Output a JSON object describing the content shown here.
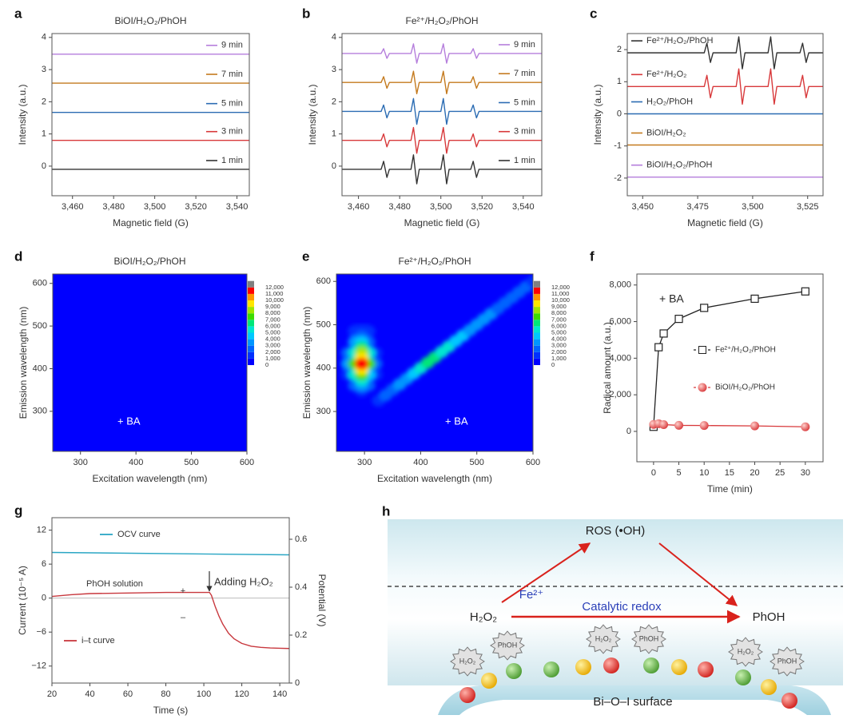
{
  "chart_data": [
    {
      "panel_label": "a",
      "type": "line",
      "title": "BiOI/H₂O₂/PhOH",
      "xlabel": "Magnetic field (G)",
      "ylabel": "Intensity (a.u.)",
      "x": [
        3450,
        3546
      ],
      "series": [
        {
          "name": "9 min",
          "color": "#b57edc",
          "values": [
            3.48,
            3.48
          ]
        },
        {
          "name": "7 min",
          "color": "#c47a1e",
          "values": [
            2.58,
            2.58
          ]
        },
        {
          "name": "5 min",
          "color": "#2b6cb3",
          "values": [
            1.67,
            1.67
          ]
        },
        {
          "name": "3 min",
          "color": "#d8393b",
          "values": [
            0.8,
            0.8
          ]
        },
        {
          "name": "1 min",
          "color": "#333333",
          "values": [
            -0.1,
            -0.1
          ]
        }
      ],
      "xlim": [
        3450,
        3546
      ],
      "ylim": [
        -0.92,
        4.12
      ],
      "xticks": [
        {
          "value": 3460,
          "label": "3,460"
        },
        {
          "value": 3480,
          "label": "3,480"
        },
        {
          "value": 3500,
          "label": "3,500"
        },
        {
          "value": 3520,
          "label": "3,520"
        },
        {
          "value": 3540,
          "label": "3,540"
        }
      ],
      "yticks": [
        0,
        1,
        2,
        3,
        4
      ],
      "legend": "right"
    },
    {
      "panel_label": "b",
      "type": "line",
      "title": "Fe²⁺/H₂O₂/PhOH",
      "xlabel": "Magnetic field (G)",
      "ylabel": "Intensity (a.u.)",
      "x": [
        3452,
        3471,
        3472.2,
        3473.8,
        3475,
        3485.5,
        3486.7,
        3488.3,
        3489.5,
        3500,
        3501.2,
        3502.8,
        3504,
        3514.5,
        3515.7,
        3517.3,
        3518.5,
        3549
      ],
      "series": [
        {
          "name": "9 min",
          "color": "#b57edc",
          "values": [
            3.5,
            3.5,
            3.65,
            3.35,
            3.5,
            3.5,
            3.8,
            3.2,
            3.5,
            3.5,
            3.8,
            3.2,
            3.5,
            3.5,
            3.65,
            3.35,
            3.5,
            3.5
          ]
        },
        {
          "name": "7 min",
          "color": "#c47a1e",
          "values": [
            2.6,
            2.6,
            2.78,
            2.42,
            2.6,
            2.6,
            2.95,
            2.25,
            2.6,
            2.6,
            2.95,
            2.25,
            2.6,
            2.6,
            2.78,
            2.42,
            2.6,
            2.6
          ]
        },
        {
          "name": "5 min",
          "color": "#2b6cb3",
          "values": [
            1.7,
            1.7,
            1.9,
            1.5,
            1.7,
            1.7,
            2.1,
            1.3,
            1.7,
            1.7,
            2.1,
            1.3,
            1.7,
            1.7,
            1.9,
            1.5,
            1.7,
            1.7
          ]
        },
        {
          "name": "3 min",
          "color": "#d8393b",
          "values": [
            0.8,
            0.8,
            1.0,
            0.6,
            0.8,
            0.8,
            1.2,
            0.4,
            0.8,
            0.8,
            1.2,
            0.4,
            0.8,
            0.8,
            1.0,
            0.6,
            0.8,
            0.8
          ]
        },
        {
          "name": "1 min",
          "color": "#333333",
          "values": [
            -0.1,
            -0.1,
            0.15,
            -0.35,
            -0.1,
            -0.1,
            0.35,
            -0.55,
            -0.1,
            -0.1,
            0.35,
            -0.55,
            -0.1,
            -0.1,
            0.15,
            -0.35,
            -0.1,
            -0.1
          ]
        }
      ],
      "xlim": [
        3452,
        3549
      ],
      "ylim": [
        -0.92,
        4.12
      ],
      "xticks": [
        {
          "value": 3460,
          "label": "3,460"
        },
        {
          "value": 3480,
          "label": "3,480"
        },
        {
          "value": 3500,
          "label": "3,500"
        },
        {
          "value": 3520,
          "label": "3,520"
        },
        {
          "value": 3540,
          "label": "3,540"
        }
      ],
      "yticks": [
        0,
        1,
        2,
        3,
        4
      ],
      "legend": "right"
    },
    {
      "panel_label": "c",
      "type": "line",
      "xlabel": "Magnetic field (G)",
      "ylabel": "Intensity (a.u.)",
      "x": [
        3443,
        3478,
        3479.2,
        3480.8,
        3482,
        3492.5,
        3493.7,
        3495.3,
        3496.5,
        3507,
        3508.2,
        3509.8,
        3511,
        3521.5,
        3522.7,
        3524.3,
        3525.5,
        3532
      ],
      "series": [
        {
          "name": "Fe²⁺/H₂O₂/PhOH",
          "color": "#333333",
          "values": [
            1.9,
            1.9,
            2.2,
            1.6,
            1.9,
            1.9,
            2.4,
            1.4,
            1.9,
            1.9,
            2.4,
            1.4,
            1.9,
            1.9,
            2.2,
            1.6,
            1.9,
            1.9
          ]
        },
        {
          "name": "Fe²⁺/H₂O₂",
          "color": "#d8393b",
          "values": [
            0.85,
            0.85,
            1.2,
            0.5,
            0.85,
            0.85,
            1.4,
            0.3,
            0.85,
            0.85,
            1.4,
            0.3,
            0.85,
            0.85,
            1.2,
            0.5,
            0.85,
            0.85
          ]
        },
        {
          "name": "H₂O₂/PhOH",
          "color": "#2b6cb3",
          "x": [
            3443,
            3532
          ],
          "values": [
            0,
            0
          ]
        },
        {
          "name": "BiOI/H₂O₂",
          "color": "#c47a1e",
          "x": [
            3443,
            3532
          ],
          "values": [
            -0.97,
            -0.97
          ]
        },
        {
          "name": "BiOI/H₂O₂/PhOH",
          "color": "#b57edc",
          "x": [
            3443,
            3532
          ],
          "values": [
            -1.97,
            -1.97
          ]
        }
      ],
      "xlim": [
        3443,
        3532
      ],
      "ylim": [
        -2.55,
        2.5
      ],
      "xticks": [
        {
          "value": 3450,
          "label": "3,450"
        },
        {
          "value": 3475,
          "label": "3,475"
        },
        {
          "value": 3500,
          "label": "3,500"
        },
        {
          "value": 3525,
          "label": "3,525"
        }
      ],
      "yticks": [
        -2,
        -1,
        0,
        1,
        2
      ],
      "legend": "left"
    },
    {
      "panel_label": "d",
      "type": "heatmap",
      "title": "BiOI/H₂O₂/PhOH",
      "xlabel": "Excitation wavelength (nm)",
      "ylabel": "Emission wavelength (nm)",
      "x": [],
      "y": [],
      "z": [],
      "xlim": [
        250,
        600
      ],
      "ylim": [
        206,
        622
      ],
      "xticks": [
        300,
        400,
        500,
        600
      ],
      "yticks": [
        300,
        400,
        500,
        600
      ],
      "colorbar": {
        "ticks": [
          0,
          {
            "value": 1000,
            "label": "1,000"
          },
          {
            "value": 2000,
            "label": "2,000"
          },
          {
            "value": 3000,
            "label": "3,000"
          },
          {
            "value": 4000,
            "label": "4,000"
          },
          {
            "value": 5000,
            "label": "5,000"
          },
          {
            "value": 6000,
            "label": "6,000"
          },
          {
            "value": 7000,
            "label": "7,000"
          },
          {
            "value": 8000,
            "label": "8,000"
          },
          {
            "value": 9000,
            "label": "9,000"
          },
          {
            "value": 10000,
            "label": "10,000"
          },
          {
            "value": 11000,
            "label": "11,000"
          },
          {
            "value": 12000,
            "label": "12,000"
          }
        ],
        "colors": [
          "#0000ff",
          "#0030ff",
          "#0064ff",
          "#0096ff",
          "#00c8ff",
          "#00e6d2",
          "#00e678",
          "#3cdc00",
          "#a0e600",
          "#ffe600",
          "#ff9600",
          "#ff0000",
          "#808080"
        ]
      },
      "annotation": "+ BA"
    },
    {
      "panel_label": "e",
      "type": "heatmap",
      "title": "Fe²⁺/H₂O₂/PhOH",
      "xlabel": "Excitation wavelength (nm)",
      "ylabel": "Emission wavelength (nm)",
      "x": [
        325,
        337.5,
        350,
        362.5,
        375,
        387.5,
        400,
        412.5,
        425,
        437.5,
        450,
        462.5,
        475,
        487.5,
        500,
        512.5,
        525,
        537.5,
        550,
        562.5,
        575,
        587.5,
        600,
        295,
        307.5,
        282.5,
        320,
        270,
        320,
        295,
        295,
        307.5,
        270,
        320,
        282.5,
        307.5,
        295,
        270,
        282.5,
        295,
        295,
        307.5,
        282.5,
        307.5,
        295,
        282.5,
        295,
        307.5,
        282.5,
        295,
        295,
        295,
        295,
        295
      ],
      "y": [
        325,
        337.5,
        350,
        362.5,
        375,
        387.5,
        400,
        412.5,
        425,
        437.5,
        450,
        462.5,
        475,
        487.5,
        500,
        512.5,
        525,
        537.5,
        550,
        562.5,
        575,
        587.5,
        600,
        497.5,
        485,
        485,
        385,
        385,
        435,
        485,
        347.5,
        360,
        435,
        410,
        360,
        460,
        472.5,
        410,
        460,
        360,
        460,
        385,
        385,
        435,
        372.5,
        435,
        447.5,
        410,
        410,
        385,
        435,
        397.5,
        422.5,
        410
      ],
      "z": [
        1500,
        2000,
        2500,
        3000,
        3500,
        4500,
        5500,
        6500,
        6000,
        5500,
        5000,
        4500,
        4000,
        3500,
        3500,
        3000,
        3000,
        2500,
        2500,
        2500,
        2000,
        2000,
        1500,
        800,
        1000,
        1200,
        1200,
        1500,
        1500,
        1500,
        1500,
        2000,
        2000,
        2500,
        2500,
        2500,
        2500,
        3000,
        3000,
        3500,
        4000,
        4500,
        5000,
        5000,
        5500,
        5500,
        6000,
        7000,
        7500,
        7500,
        8000,
        9500,
        9500,
        11500
      ],
      "xlim": [
        250,
        600
      ],
      "ylim": [
        208,
        617
      ],
      "xticks": [
        300,
        400,
        500,
        600
      ],
      "yticks": [
        300,
        400,
        500,
        600
      ],
      "colorbar": {
        "ticks": [
          0,
          {
            "value": 1000,
            "label": "1,000"
          },
          {
            "value": 2000,
            "label": "2,000"
          },
          {
            "value": 3000,
            "label": "3,000"
          },
          {
            "value": 4000,
            "label": "4,000"
          },
          {
            "value": 5000,
            "label": "5,000"
          },
          {
            "value": 6000,
            "label": "6,000"
          },
          {
            "value": 7000,
            "label": "7,000"
          },
          {
            "value": 8000,
            "label": "8,000"
          },
          {
            "value": 9000,
            "label": "9,000"
          },
          {
            "value": 10000,
            "label": "10,000"
          },
          {
            "value": 11000,
            "label": "11,000"
          },
          {
            "value": 12000,
            "label": "12,000"
          }
        ],
        "colors": [
          "#0000ff",
          "#0030ff",
          "#0064ff",
          "#0096ff",
          "#00c8ff",
          "#00e6d2",
          "#00e678",
          "#3cdc00",
          "#a0e600",
          "#ffe600",
          "#ff9600",
          "#ff0000",
          "#808080"
        ]
      },
      "annotation": "+ BA"
    },
    {
      "panel_label": "f",
      "type": "line",
      "xlabel": "Time (min)",
      "ylabel": "Radical amount (a.u.)",
      "x": [
        0,
        1,
        2,
        5,
        10,
        20,
        30
      ],
      "series": [
        {
          "name": "Fe²⁺/H₂O₂/PhOH",
          "color": "#222222",
          "marker": "square",
          "values": [
            250,
            4600,
            5350,
            6150,
            6750,
            7250,
            7650
          ]
        },
        {
          "name": "BiOI/H₂O₂/PhOH",
          "color": "#d8393b",
          "marker": "sphere",
          "values": [
            380,
            420,
            370,
            330,
            320,
            300,
            250
          ]
        }
      ],
      "xlim": [
        -3.3,
        33.5
      ],
      "ylim": [
        -1660,
        8600
      ],
      "xticks": [
        0,
        5,
        10,
        15,
        20,
        25,
        30
      ],
      "yticks": [
        0,
        {
          "value": 2000,
          "label": "2,000"
        },
        {
          "value": 4000,
          "label": "4,000"
        },
        {
          "value": 6000,
          "label": "6,000"
        },
        {
          "value": 8000,
          "label": "8,000"
        }
      ],
      "legend": "center",
      "annotation": "+ BA"
    },
    {
      "panel_label": "g",
      "type": "line",
      "xlabel": "Time (s)",
      "ylabel": "Current (10⁻⁵ A)",
      "y2label": "Potential (V)",
      "series": [
        {
          "name": "OCV curve",
          "color": "#2aa6c4",
          "axis": "y2",
          "x": [
            20,
            145
          ],
          "values": [
            0.545,
            0.535
          ]
        },
        {
          "name": "i–t curve",
          "color": "#c8383e",
          "x": [
            20,
            30,
            40,
            60,
            80,
            100,
            103,
            104,
            106,
            108,
            110,
            113,
            116,
            120,
            125,
            130,
            135,
            140,
            145
          ],
          "values": [
            0.3,
            0.6,
            0.8,
            0.9,
            1.0,
            1.0,
            1.0,
            0.5,
            -1.5,
            -3.2,
            -4.6,
            -6.2,
            -7.2,
            -8.0,
            -8.5,
            -8.7,
            -8.8,
            -8.85,
            -8.9
          ]
        }
      ],
      "xlim": [
        20,
        145
      ],
      "ylim": [
        -15,
        14.2
      ],
      "y2lim": [
        0,
        0.69
      ],
      "xticks": [
        20,
        40,
        60,
        80,
        100,
        120,
        140
      ],
      "yticks": [
        {
          "value": -12,
          "label": "−12"
        },
        {
          "value": -6,
          "label": "−6"
        },
        0,
        6,
        12
      ],
      "y2ticks": [
        0,
        0.2,
        0.4,
        0.6
      ],
      "zero_line": true,
      "legend": "inline",
      "annotations": [
        "PhOH solution",
        "Adding H₂O₂",
        "+",
        "–"
      ]
    }
  ],
  "diagram": {
    "panel_label": "h",
    "ros": "ROS (•OH)",
    "catalyst": "Fe²⁺",
    "process": "Catalytic redox",
    "reactant": "H₂O₂",
    "product": "PhOH",
    "surface": "Bi–O–I surface",
    "badges": [
      "H₂O₂",
      "PhOH",
      "H₂O₂",
      "PhOH",
      "H₂O₂",
      "PhOH"
    ]
  }
}
